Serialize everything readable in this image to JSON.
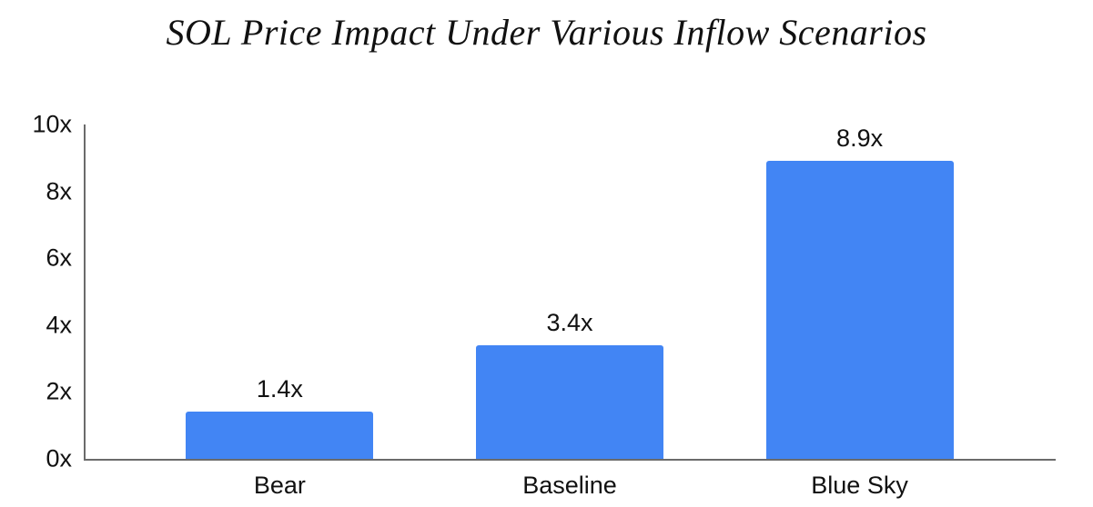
{
  "chart_data": {
    "type": "bar",
    "title": "SOL Price Impact Under Various Inflow Scenarios",
    "categories": [
      "Bear",
      "Baseline",
      "Blue Sky"
    ],
    "values": [
      1.4,
      3.4,
      8.9
    ],
    "value_labels": [
      "1.4x",
      "3.4x",
      "8.9x"
    ],
    "y_ticks": [
      "0x",
      "2x",
      "4x",
      "6x",
      "8x",
      "10x"
    ],
    "y_tick_values": [
      0,
      2,
      4,
      6,
      8,
      10
    ],
    "ylim": [
      0,
      10
    ],
    "xlabel": "",
    "ylabel": "",
    "grid": false,
    "legend": false,
    "colors": {
      "bar": "#4285F4",
      "axis": "#6b6b6b",
      "text": "#111111",
      "background": "#ffffff"
    }
  }
}
